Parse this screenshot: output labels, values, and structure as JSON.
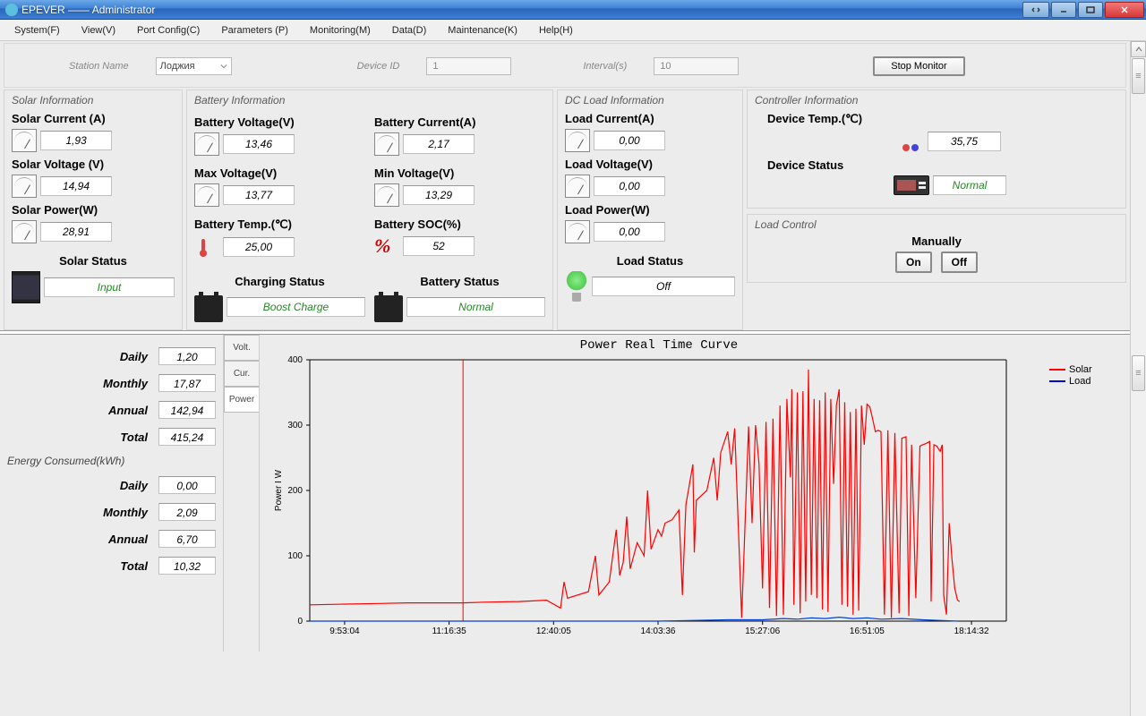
{
  "window": {
    "title": "EPEVER —— Administrator"
  },
  "menu": {
    "system": "System(F)",
    "view": "View(V)",
    "port": "Port Config(C)",
    "params": "Parameters (P)",
    "monitor": "Monitoring(M)",
    "data": "Data(D)",
    "maint": "Maintenance(K)",
    "help": "Help(H)"
  },
  "toolbar": {
    "station_label": "Station Name",
    "station_value": "Лоджия",
    "device_label": "Device ID",
    "device_value": "1",
    "interval_label": "Interval(s)",
    "interval_value": "10",
    "stop_btn": "Stop Monitor"
  },
  "panels": {
    "solar_title": "Solar Information",
    "battery_title": "Battery Information",
    "load_title": "DC Load Information",
    "controller_title": "Controller Information",
    "load_control_title": "Load Control"
  },
  "solar": {
    "current_lbl": "Solar Current (A)",
    "current_val": "1,93",
    "voltage_lbl": "Solar Voltage (V)",
    "voltage_val": "14,94",
    "power_lbl": "Solar Power(W)",
    "power_val": "28,91",
    "status_lbl": "Solar Status",
    "status_val": "Input"
  },
  "battery": {
    "voltage_lbl": "Battery Voltage(V)",
    "voltage_val": "13,46",
    "current_lbl": "Battery Current(A)",
    "current_val": "2,17",
    "maxv_lbl": "Max Voltage(V)",
    "maxv_val": "13,77",
    "minv_lbl": "Min Voltage(V)",
    "minv_val": "13,29",
    "temp_lbl": "Battery Temp.(℃)",
    "temp_val": "25,00",
    "soc_lbl": "Battery SOC(%)",
    "soc_val": "52",
    "charging_lbl": "Charging Status",
    "charging_val": "Boost Charge",
    "status_lbl": "Battery Status",
    "status_val": "Normal"
  },
  "load": {
    "current_lbl": "Load Current(A)",
    "current_val": "0,00",
    "voltage_lbl": "Load Voltage(V)",
    "voltage_val": "0,00",
    "power_lbl": "Load Power(W)",
    "power_val": "0,00",
    "status_lbl": "Load Status",
    "status_val": "Off"
  },
  "controller": {
    "temp_lbl": "Device Temp.(℃)",
    "temp_val": "35,75",
    "status_lbl": "Device Status",
    "status_val": "Normal"
  },
  "load_control": {
    "mode": "Manually",
    "on": "On",
    "off": "Off"
  },
  "energyGen": {
    "title": "",
    "daily_lbl": "Daily",
    "daily": "1,20",
    "monthly_lbl": "Monthly",
    "monthly": "17,87",
    "annual_lbl": "Annual",
    "annual": "142,94",
    "total_lbl": "Total",
    "total": "415,24"
  },
  "energyCons": {
    "title": "Energy Consumed(kWh)",
    "daily_lbl": "Daily",
    "daily": "0,00",
    "monthly_lbl": "Monthly",
    "monthly": "2,09",
    "annual_lbl": "Annual",
    "annual": "6,70",
    "total_lbl": "Total",
    "total": "10,32"
  },
  "chart": {
    "tabs": {
      "volt": "Volt.",
      "cur": "Cur.",
      "power": "Power"
    },
    "title": "Power Real Time Curve",
    "ylabel": "Power I W",
    "legend_solar": "Solar",
    "legend_load": "Load",
    "type": "line",
    "colors": {
      "solar": "#ff0000",
      "load": "#0000d4",
      "grid": "#000000",
      "bg": "#ececec"
    },
    "ylim": [
      0,
      400
    ],
    "ytick_step": 100,
    "xticks": [
      "9:53:04",
      "11:16:35",
      "12:40:05",
      "14:03:36",
      "15:27:06",
      "16:51:05",
      "18:14:32"
    ],
    "cursor_x": 0.22,
    "solar_series": [
      [
        0.0,
        25
      ],
      [
        0.05,
        26
      ],
      [
        0.1,
        27
      ],
      [
        0.14,
        28
      ],
      [
        0.18,
        28
      ],
      [
        0.22,
        28
      ],
      [
        0.25,
        29
      ],
      [
        0.3,
        30
      ],
      [
        0.34,
        32
      ],
      [
        0.36,
        20
      ],
      [
        0.365,
        60
      ],
      [
        0.37,
        35
      ],
      [
        0.4,
        45
      ],
      [
        0.41,
        100
      ],
      [
        0.415,
        40
      ],
      [
        0.43,
        60
      ],
      [
        0.44,
        140
      ],
      [
        0.445,
        70
      ],
      [
        0.45,
        90
      ],
      [
        0.455,
        160
      ],
      [
        0.46,
        80
      ],
      [
        0.47,
        120
      ],
      [
        0.48,
        100
      ],
      [
        0.485,
        200
      ],
      [
        0.49,
        110
      ],
      [
        0.5,
        140
      ],
      [
        0.505,
        130
      ],
      [
        0.51,
        150
      ],
      [
        0.52,
        155
      ],
      [
        0.53,
        170
      ],
      [
        0.535,
        40
      ],
      [
        0.54,
        178
      ],
      [
        0.55,
        240
      ],
      [
        0.552,
        105
      ],
      [
        0.555,
        185
      ],
      [
        0.57,
        200
      ],
      [
        0.58,
        250
      ],
      [
        0.585,
        185
      ],
      [
        0.59,
        258
      ],
      [
        0.6,
        290
      ],
      [
        0.605,
        240
      ],
      [
        0.61,
        295
      ],
      [
        0.62,
        5
      ],
      [
        0.63,
        298
      ],
      [
        0.635,
        150
      ],
      [
        0.64,
        300
      ],
      [
        0.645,
        240
      ],
      [
        0.65,
        50
      ],
      [
        0.655,
        305
      ],
      [
        0.66,
        20
      ],
      [
        0.665,
        310
      ],
      [
        0.67,
        8
      ],
      [
        0.675,
        330
      ],
      [
        0.68,
        10
      ],
      [
        0.685,
        340
      ],
      [
        0.69,
        220
      ],
      [
        0.692,
        355
      ],
      [
        0.695,
        25
      ],
      [
        0.7,
        350
      ],
      [
        0.704,
        12
      ],
      [
        0.708,
        352
      ],
      [
        0.712,
        30
      ],
      [
        0.716,
        385
      ],
      [
        0.72,
        40
      ],
      [
        0.724,
        340
      ],
      [
        0.728,
        35
      ],
      [
        0.732,
        338
      ],
      [
        0.736,
        18
      ],
      [
        0.74,
        350
      ],
      [
        0.744,
        14
      ],
      [
        0.748,
        340
      ],
      [
        0.752,
        210
      ],
      [
        0.756,
        330
      ],
      [
        0.76,
        355
      ],
      [
        0.764,
        25
      ],
      [
        0.768,
        335
      ],
      [
        0.772,
        22
      ],
      [
        0.776,
        320
      ],
      [
        0.78,
        10
      ],
      [
        0.784,
        325
      ],
      [
        0.788,
        16
      ],
      [
        0.792,
        330
      ],
      [
        0.796,
        270
      ],
      [
        0.8,
        332
      ],
      [
        0.804,
        328
      ],
      [
        0.808,
        310
      ],
      [
        0.812,
        290
      ],
      [
        0.816,
        292
      ],
      [
        0.82,
        290
      ],
      [
        0.825,
        10
      ],
      [
        0.83,
        292
      ],
      [
        0.835,
        5
      ],
      [
        0.84,
        288
      ],
      [
        0.846,
        12
      ],
      [
        0.85,
        280
      ],
      [
        0.856,
        282
      ],
      [
        0.86,
        8
      ],
      [
        0.864,
        270
      ],
      [
        0.87,
        35
      ],
      [
        0.876,
        268
      ],
      [
        0.88,
        270
      ],
      [
        0.885,
        272
      ],
      [
        0.89,
        275
      ],
      [
        0.892,
        30
      ],
      [
        0.896,
        270
      ],
      [
        0.9,
        268
      ],
      [
        0.905,
        260
      ],
      [
        0.908,
        270
      ],
      [
        0.91,
        40
      ],
      [
        0.914,
        10
      ],
      [
        0.918,
        150
      ],
      [
        0.922,
        95
      ],
      [
        0.926,
        50
      ],
      [
        0.93,
        32
      ],
      [
        0.933,
        30
      ]
    ],
    "load_series": [
      [
        0.0,
        0
      ],
      [
        0.3,
        0
      ],
      [
        0.5,
        0
      ],
      [
        0.6,
        2
      ],
      [
        0.65,
        2
      ],
      [
        0.68,
        4
      ],
      [
        0.7,
        3
      ],
      [
        0.72,
        5
      ],
      [
        0.74,
        4
      ],
      [
        0.76,
        6
      ],
      [
        0.78,
        4
      ],
      [
        0.8,
        5
      ],
      [
        0.82,
        3
      ],
      [
        0.85,
        4
      ],
      [
        0.88,
        2
      ],
      [
        0.93,
        0
      ]
    ]
  }
}
